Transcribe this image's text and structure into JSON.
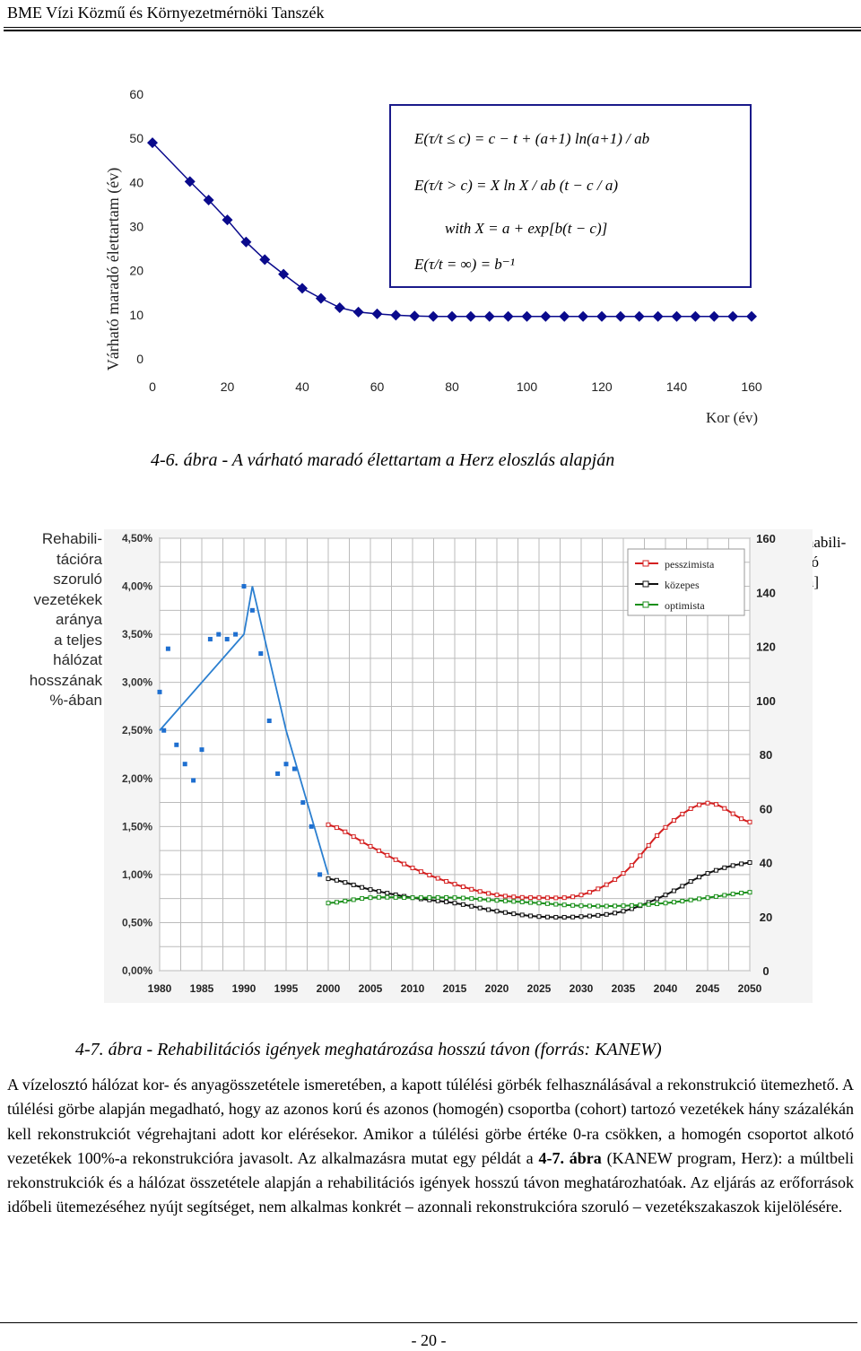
{
  "header": {
    "title": "BME Vízi Közmű és Környezetmérnöki Tanszék"
  },
  "figure1": {
    "caption": "4-6. ábra - A várható maradó élettartam a Herz eloszlás alapján",
    "chart_data": {
      "type": "line",
      "ylabel": "Várható maradó élettartam (év)",
      "xlabel": "Kor (év)",
      "xlim": [
        0,
        160
      ],
      "ylim": [
        0,
        60
      ],
      "xticks": [
        "0",
        "20",
        "40",
        "60",
        "80",
        "100",
        "120",
        "140",
        "160"
      ],
      "yticks": [
        "0",
        "10",
        "20",
        "30",
        "40",
        "50",
        "60"
      ],
      "marker": "diamond",
      "color": "#0a0a8c",
      "series": [
        {
          "x": [
            0,
            10,
            15,
            20,
            25,
            30,
            35,
            40,
            45,
            50,
            55,
            60,
            65,
            70,
            75,
            80,
            85,
            90,
            95,
            100,
            105,
            110,
            115,
            120,
            125,
            130,
            135,
            140,
            145,
            150,
            155,
            160
          ],
          "values": [
            49,
            40.2,
            36,
            31.5,
            26.5,
            22.5,
            19.2,
            16,
            13.7,
            11.6,
            10.6,
            10.2,
            9.9,
            9.7,
            9.6,
            9.6,
            9.6,
            9.6,
            9.6,
            9.6,
            9.6,
            9.6,
            9.6,
            9.6,
            9.6,
            9.6,
            9.6,
            9.6,
            9.6,
            9.6,
            9.6,
            9.6
          ]
        }
      ],
      "formula": {
        "line1": "E(τ/t ≤ c) = c − t + (a+1) ln(a+1) / ab",
        "line2": "E(τ/t > c) = X ln X / ab (t − c / a)",
        "line3": "with X = a + exp[b(t − c)]",
        "line4": "E(τ/t = ∞) = b⁻¹"
      }
    }
  },
  "figure2": {
    "caption": "4-7. ábra - Rehabilitációs igények meghatározása hosszú távon (forrás: KANEW)",
    "left_label_lines": [
      "Rehabili-",
      "tációra",
      "szoruló",
      "vezetékek",
      "aránya",
      "a teljes",
      "hálózat",
      "hosszának",
      "%-ában"
    ],
    "right_label_lines": [
      "Rehabili-",
      "táció",
      "[km]"
    ],
    "chart_data": {
      "type": "line",
      "x": [
        1980,
        1985,
        1990,
        1995,
        2000,
        2005,
        2010,
        2015,
        2020,
        2025,
        2030,
        2035,
        2040,
        2045,
        2050
      ],
      "xticks": [
        "1980",
        "1985",
        "1990",
        "1995",
        "2000",
        "2005",
        "2010",
        "2015",
        "2020",
        "2025",
        "2030",
        "2035",
        "2040",
        "2045",
        "2050"
      ],
      "yticks_left": [
        "0,00%",
        "0,50%",
        "1,00%",
        "1,50%",
        "2,00%",
        "2,50%",
        "3,00%",
        "3,50%",
        "4,00%",
        "4,50%"
      ],
      "yticks_right": [
        "0",
        "20",
        "40",
        "60",
        "80",
        "100",
        "120",
        "140",
        "160"
      ],
      "ylim_left": [
        0,
        4.5
      ],
      "ylim_right": [
        0,
        160
      ],
      "legend": [
        "pesszimista",
        "közepes",
        "optimista"
      ],
      "legend_position": "top-right",
      "grid": true,
      "scatter_percent": {
        "x": [
          1980,
          1980.5,
          1981,
          1982,
          1983,
          1984,
          1985,
          1986,
          1987,
          1988,
          1989,
          1990,
          1991,
          1992,
          1993,
          1994,
          1995,
          1996,
          1997,
          1998,
          1999
        ],
        "values": [
          2.9,
          2.5,
          3.35,
          2.35,
          2.15,
          1.98,
          2.3,
          3.45,
          3.5,
          3.45,
          3.5,
          4.0,
          3.75,
          3.3,
          2.6,
          2.05,
          2.15,
          2.1,
          1.75,
          1.5,
          1.0
        ]
      },
      "trend_percent": {
        "x": [
          1980,
          1985,
          1990,
          1991,
          1995,
          2000
        ],
        "values": [
          2.5,
          3.0,
          3.5,
          4.0,
          2.5,
          1.0
        ]
      },
      "series": [
        {
          "name": "pesszimista",
          "color": "#d42020",
          "x": [
            2000,
            2005,
            2010,
            2015,
            2020,
            2025,
            2030,
            2035,
            2040,
            2045,
            2050
          ],
          "values": [
            54,
            46,
            38,
            32,
            28,
            27,
            28,
            36,
            53,
            62,
            55
          ]
        },
        {
          "name": "közepes",
          "color": "#111111",
          "x": [
            2000,
            2005,
            2010,
            2015,
            2020,
            2025,
            2030,
            2035,
            2040,
            2045,
            2050
          ],
          "values": [
            34,
            30,
            27,
            25,
            22,
            20,
            20,
            22,
            28,
            36,
            40
          ]
        },
        {
          "name": "optimista",
          "color": "#1a8f1a",
          "x": [
            2000,
            2005,
            2010,
            2015,
            2020,
            2025,
            2030,
            2035,
            2040,
            2045,
            2050
          ],
          "values": [
            25,
            27,
            27,
            27,
            26,
            25,
            24,
            24,
            25,
            27,
            29
          ]
        }
      ]
    }
  },
  "body": {
    "paragraph": "A vízelosztó hálózat kor- és anyagösszetétele ismeretében, a kapott túlélési görbék felhasználásával a rekonstrukció ütemezhető. A túlélési görbe alapján megadható, hogy az azonos korú és azonos (homogén) csoportba (cohort) tartozó vezetékek hány százalékán kell rekonstrukciót végrehajtani adott kor elérésekor. Amikor a túlélési görbe értéke 0-ra csökken, a homogén csoportot alkotó vezetékek 100%-a rekonstrukcióra javasolt. Az alkalmazásra mutat egy példát a ",
    "bold_ref": "4-7. ábra",
    "paragraph_end": " (KANEW program, Herz): a múltbeli rekonstrukciók és a hálózat összetétele alapján a rehabilitációs igények hosszú távon meghatározhatóak. Az eljárás az erőforrások időbeli ütemezéséhez nyújt segítséget, nem alkalmas konkrét – azonnali rekonstrukcióra szoruló – vezetékszakaszok kijelölésére."
  },
  "footer": {
    "page_number": "- 20 -"
  }
}
